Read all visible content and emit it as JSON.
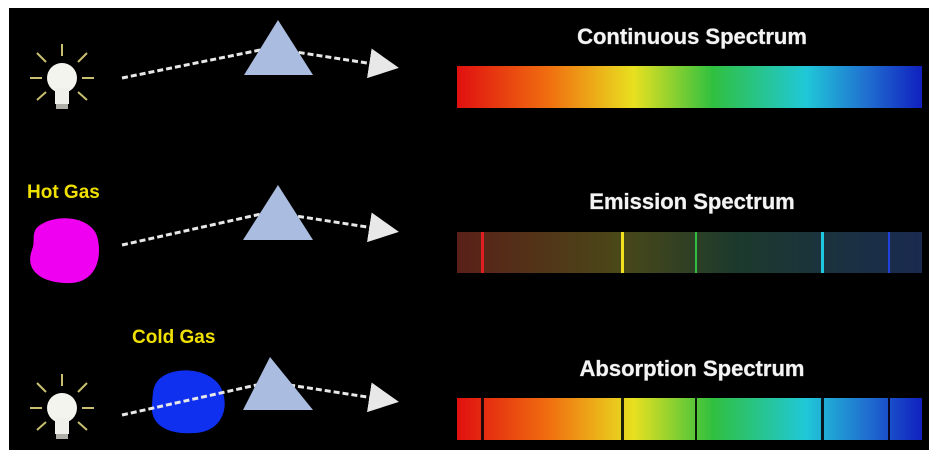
{
  "spectra": [
    {
      "title": "Continuous Spectrum"
    },
    {
      "title": "Emission Spectrum"
    },
    {
      "title": "Absorption Spectrum"
    }
  ],
  "labels": {
    "hot_gas": "Hot Gas",
    "cold_gas": "Cold Gas"
  }
}
